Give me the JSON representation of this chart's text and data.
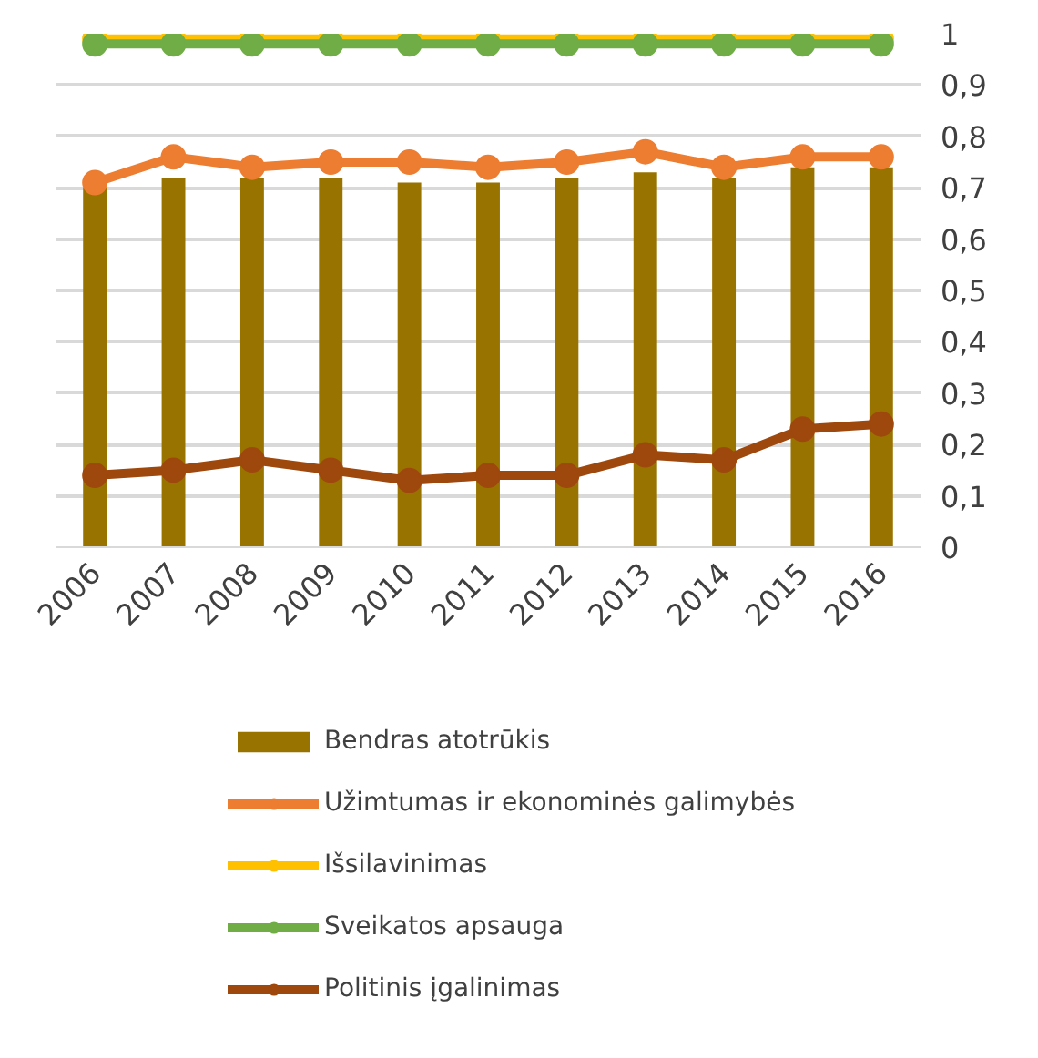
{
  "chart_data": {
    "type": "bar",
    "categories": [
      "2006",
      "2007",
      "2008",
      "2009",
      "2010",
      "2011",
      "2012",
      "2013",
      "2014",
      "2015",
      "2016"
    ],
    "series": [
      {
        "name": "Bendras atotrūkis",
        "color": "#997300",
        "values": [
          0.7,
          0.72,
          0.72,
          0.72,
          0.71,
          0.71,
          0.72,
          0.73,
          0.72,
          0.74,
          0.74
        ]
      },
      {
        "name": "Užimtumas ir ekonominės galimybės",
        "type": "line",
        "color": "#ed7d31",
        "values": [
          0.71,
          0.76,
          0.74,
          0.75,
          0.75,
          0.74,
          0.75,
          0.77,
          0.74,
          0.76,
          0.76
        ]
      },
      {
        "name": "Išsilavinimas",
        "type": "line",
        "color": "#ffc000",
        "values": [
          0.99,
          0.99,
          0.99,
          0.99,
          0.99,
          0.99,
          0.99,
          0.99,
          0.99,
          0.99,
          0.99
        ]
      },
      {
        "name": "Sveikatos apsauga",
        "type": "line",
        "color": "#70ad47",
        "values": [
          0.98,
          0.98,
          0.98,
          0.98,
          0.98,
          0.98,
          0.98,
          0.98,
          0.98,
          0.98,
          0.98
        ]
      },
      {
        "name": "Politinis įgalinimas",
        "type": "line",
        "color": "#9e480e",
        "values": [
          0.14,
          0.15,
          0.17,
          0.15,
          0.13,
          0.14,
          0.14,
          0.18,
          0.17,
          0.23,
          0.24
        ]
      }
    ],
    "ylim": [
      0,
      1
    ],
    "yticks": [
      0,
      {
        "value": 0.1,
        "label": "0,1"
      },
      {
        "value": 0.2,
        "label": "0,2"
      },
      {
        "value": 0.3,
        "label": "0,3"
      },
      {
        "value": 0.4,
        "label": "0,4"
      },
      {
        "value": 0.5,
        "label": "0,5"
      },
      {
        "value": 0.6,
        "label": "0,6"
      },
      {
        "value": 0.7,
        "label": "0,7"
      },
      {
        "value": 0.8,
        "label": "0,8"
      },
      {
        "value": 0.9,
        "label": "0,9"
      },
      1
    ],
    "grid": "y",
    "legend": "bottom",
    "marker": "circle",
    "line_style": "solid"
  }
}
